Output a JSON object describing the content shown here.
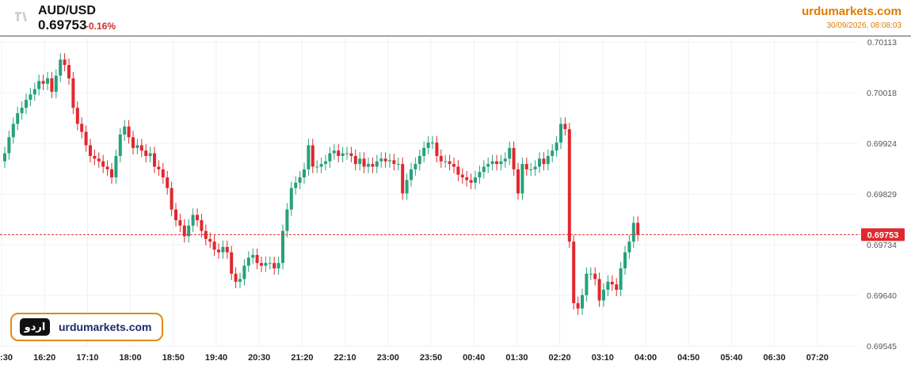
{
  "header": {
    "symbol": "AUD/USD",
    "price": "0.69753",
    "change": "-0.16%",
    "brand": "urdumarkets.com",
    "timestamp": "30/09/2026, 08:08:03"
  },
  "badge": {
    "logo_text": "اردو",
    "text": "urdumarkets.com"
  },
  "colors": {
    "up": "#26a17b",
    "down": "#e0282e",
    "brand": "#e07b00",
    "grid": "#eef0f3",
    "price_tag": "#e0282e"
  },
  "chart_data": {
    "type": "candlestick",
    "y_ticks": [
      "0.70113",
      "0.70018",
      "0.69924",
      "0.69829",
      "0.69734",
      "0.69640",
      "0.69545"
    ],
    "x_ticks": [
      ":30",
      "16:20",
      "17:10",
      "18:00",
      "18:50",
      "19:40",
      "20:30",
      "21:20",
      "22:10",
      "23:00",
      "23:50",
      "00:40",
      "01:30",
      "02:20",
      "03:10",
      "04:00",
      "04:50",
      "05:40",
      "06:30",
      "07:20"
    ],
    "ylim": [
      0.69545,
      0.70113
    ],
    "current_price": "0.69753",
    "closes": [
      0.69905,
      0.69935,
      0.6996,
      0.6998,
      0.6999,
      0.70005,
      0.70015,
      0.70025,
      0.7004,
      0.70035,
      0.70045,
      0.7002,
      0.7005,
      0.7008,
      0.7007,
      0.70045,
      0.6999,
      0.6996,
      0.69945,
      0.6992,
      0.699,
      0.69895,
      0.6989,
      0.6988,
      0.69875,
      0.6986,
      0.699,
      0.6994,
      0.69955,
      0.69935,
      0.69915,
      0.6992,
      0.6991,
      0.699,
      0.69905,
      0.6988,
      0.69875,
      0.6986,
      0.6984,
      0.698,
      0.6978,
      0.6977,
      0.6975,
      0.6977,
      0.6979,
      0.6978,
      0.6976,
      0.69745,
      0.6974,
      0.69725,
      0.6972,
      0.6973,
      0.6972,
      0.6968,
      0.69665,
      0.6967,
      0.69695,
      0.6971,
      0.69715,
      0.697,
      0.69695,
      0.697,
      0.697,
      0.6969,
      0.697,
      0.6976,
      0.698,
      0.6984,
      0.6985,
      0.6986,
      0.69875,
      0.6992,
      0.6988,
      0.6988,
      0.69885,
      0.6989,
      0.69905,
      0.6991,
      0.699,
      0.69905,
      0.69905,
      0.699,
      0.69885,
      0.69895,
      0.6988,
      0.69885,
      0.6988,
      0.6989,
      0.69895,
      0.6989,
      0.69892,
      0.69885,
      0.69885,
      0.6983,
      0.69855,
      0.69875,
      0.69885,
      0.699,
      0.69915,
      0.69925,
      0.69925,
      0.699,
      0.6989,
      0.6989,
      0.69885,
      0.6988,
      0.69865,
      0.6986,
      0.69855,
      0.6985,
      0.6986,
      0.6987,
      0.6988,
      0.69885,
      0.6989,
      0.69885,
      0.6989,
      0.69895,
      0.69915,
      0.69875,
      0.6983,
      0.69885,
      0.69875,
      0.69875,
      0.6988,
      0.69895,
      0.69885,
      0.699,
      0.6991,
      0.69925,
      0.6996,
      0.6995,
      0.6974,
      0.69625,
      0.69615,
      0.6964,
      0.6968,
      0.6968,
      0.6967,
      0.6963,
      0.6965,
      0.69665,
      0.6966,
      0.6965,
      0.6969,
      0.6972,
      0.6974,
      0.69775,
      0.69753
    ]
  }
}
